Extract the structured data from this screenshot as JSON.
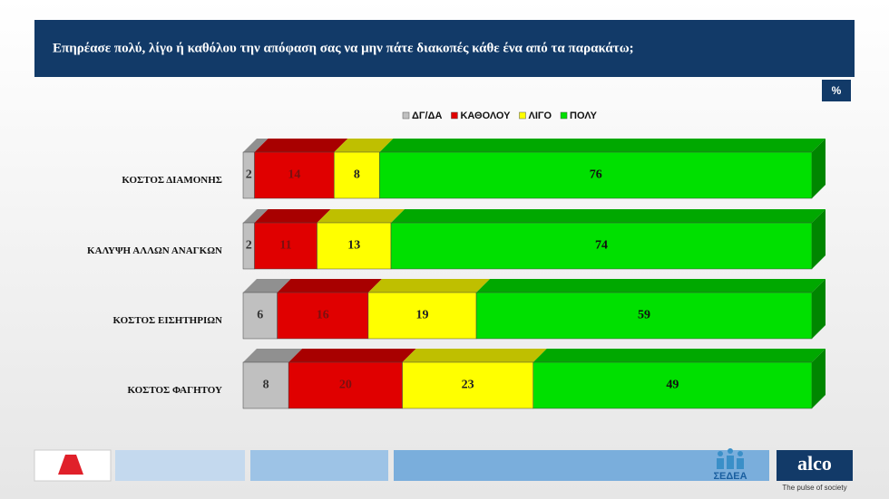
{
  "chart_data": {
    "type": "bar",
    "orientation": "horizontal",
    "stacked": true,
    "title": "Επηρέασε πολύ, λίγο ή καθόλου την απόφαση σας να μην πάτε διακοπές κάθε ένα από τα παρακάτω;",
    "categories": [
      "ΚΟΣΤΟΣ ΔΙΑΜΟΝΗΣ",
      "ΚΑΛΥΨΗ ΑΛΛΩΝ ΑΝΑΓΚΩΝ",
      "ΚΟΣΤΟΣ ΕΙΣΗΤΗΡΙΩΝ",
      "ΚΟΣΤΟΣ ΦΑΓΗΤΟΥ"
    ],
    "series": [
      {
        "name": "ΔΓ/ΔΑ",
        "color": "#c0c0c0",
        "values": [
          2,
          2,
          6,
          8
        ]
      },
      {
        "name": "ΚΑΘΟΛΟΥ",
        "color": "#e00000",
        "values": [
          14,
          11,
          16,
          20
        ]
      },
      {
        "name": "ΛΙΓΟ",
        "color": "#ffff00",
        "values": [
          8,
          13,
          19,
          23
        ]
      },
      {
        "name": "ΠΟΛΥ",
        "color": "#00e000",
        "values": [
          76,
          74,
          59,
          49
        ]
      }
    ],
    "xlim": [
      0,
      100
    ],
    "legend": "top"
  },
  "unit_badge": "%",
  "footer": {
    "partner": "ΣΕΔΕΑ",
    "brand": "alco",
    "tagline": "The pulse of society"
  }
}
